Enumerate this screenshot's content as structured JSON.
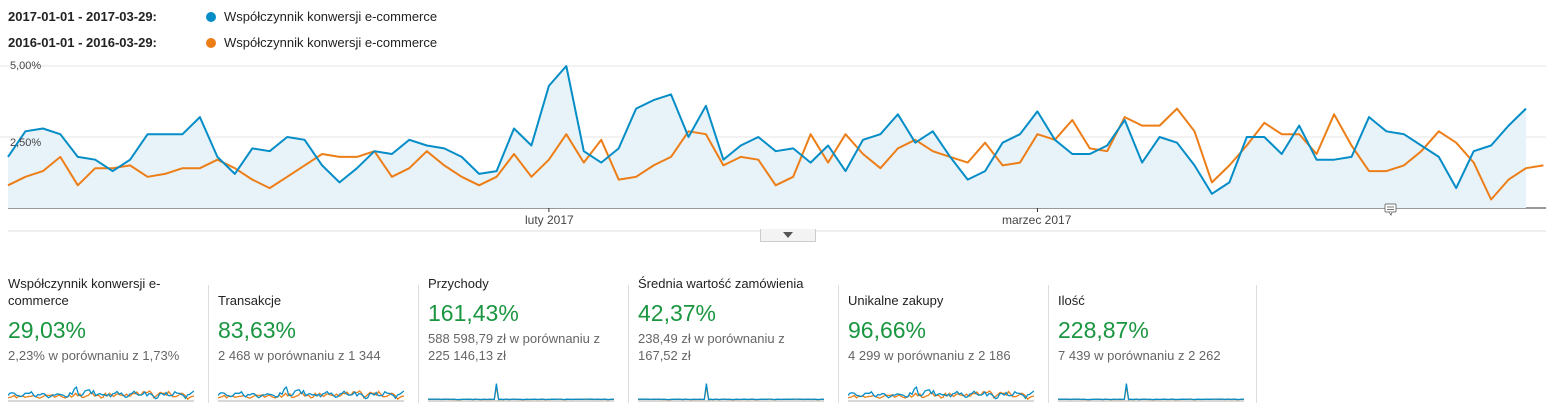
{
  "legend": [
    {
      "range": "2017-01-01 - 2017-03-29:",
      "metric": "Współczynnik konwersji e-commerce",
      "color": "#058dc7"
    },
    {
      "range": "2016-01-01 - 2016-03-29:",
      "metric": "Współczynnik konwersji e-commerce",
      "color": "#ed7e17"
    }
  ],
  "chart_data": {
    "type": "area",
    "y_ticks": [
      "5,00%",
      "2,50%"
    ],
    "ylim": [
      0,
      5.0
    ],
    "x_labels": [
      {
        "label": "luty 2017",
        "index": 31
      },
      {
        "label": "marzec 2017",
        "index": 59
      }
    ],
    "series": [
      {
        "color": "#058dc7",
        "values": [
          1.8,
          2.7,
          2.8,
          2.6,
          1.8,
          1.7,
          1.3,
          1.7,
          2.6,
          2.6,
          2.6,
          3.2,
          1.8,
          1.2,
          2.1,
          2.0,
          2.5,
          2.4,
          1.5,
          0.9,
          1.4,
          2.0,
          1.9,
          2.4,
          2.2,
          2.1,
          1.8,
          1.2,
          1.3,
          2.8,
          2.2,
          4.3,
          5.0,
          2.0,
          1.6,
          2.1,
          3.5,
          3.8,
          4.0,
          2.5,
          3.6,
          1.7,
          2.2,
          2.5,
          2.0,
          2.1,
          1.6,
          2.2,
          1.3,
          2.4,
          2.6,
          3.3,
          2.3,
          2.7,
          1.8,
          1.0,
          1.3,
          2.3,
          2.6,
          3.4,
          2.4,
          1.9,
          1.9,
          2.2,
          3.1,
          1.6,
          2.5,
          2.3,
          1.5,
          0.5,
          0.9,
          2.5,
          2.5,
          1.9,
          2.9,
          1.7,
          1.7,
          1.8,
          3.2,
          2.7,
          2.6,
          2.2,
          1.8,
          0.7,
          2.0,
          2.2,
          2.9,
          3.5
        ]
      },
      {
        "color": "#ed7e17",
        "values": [
          0.8,
          1.1,
          1.3,
          1.8,
          0.8,
          1.4,
          1.4,
          1.5,
          1.1,
          1.2,
          1.4,
          1.4,
          1.7,
          1.4,
          1.0,
          0.7,
          1.1,
          1.5,
          1.9,
          1.8,
          1.8,
          2.0,
          1.1,
          1.4,
          2.0,
          1.5,
          1.1,
          0.8,
          1.1,
          1.9,
          1.1,
          1.7,
          2.6,
          1.6,
          2.4,
          1.0,
          1.1,
          1.5,
          1.8,
          2.7,
          2.6,
          1.5,
          1.8,
          1.7,
          0.8,
          1.1,
          2.6,
          1.6,
          2.6,
          1.9,
          1.4,
          2.1,
          2.4,
          2.0,
          1.8,
          1.6,
          2.3,
          1.5,
          1.6,
          2.6,
          2.4,
          3.1,
          2.1,
          2.0,
          3.2,
          2.9,
          2.9,
          3.5,
          2.7,
          0.9,
          1.5,
          2.2,
          3.0,
          2.6,
          2.6,
          1.9,
          3.3,
          2.2,
          1.3,
          1.3,
          1.5,
          2.0,
          2.7,
          2.3,
          1.6,
          0.3,
          1.0,
          1.4,
          1.5
        ]
      }
    ]
  },
  "cards": [
    {
      "label": "Współczynnik konwersji e-commerce",
      "pct": "29,03%",
      "cmp": "2,23% w porównaniu z 1,73%",
      "spark": "mixed"
    },
    {
      "label": "Transakcje",
      "pct": "83,63%",
      "cmp": "2 468 w porównaniu z 1 344",
      "spark": "mixed"
    },
    {
      "label": "Przychody",
      "pct": "161,43%",
      "cmp": "588 598,79 zł w porównaniu z 225 146,13 zł",
      "spark": "flat"
    },
    {
      "label": "Średnia wartość zamówienia",
      "pct": "42,37%",
      "cmp": "238,49 zł w porównaniu z 167,52 zł",
      "spark": "flat"
    },
    {
      "label": "Unikalne zakupy",
      "pct": "96,66%",
      "cmp": "4 299 w porównaniu z 2 186",
      "spark": "mixed"
    },
    {
      "label": "Ilość",
      "pct": "228,87%",
      "cmp": "7 439 w porównaniu z 2 262",
      "spark": "flat"
    }
  ]
}
